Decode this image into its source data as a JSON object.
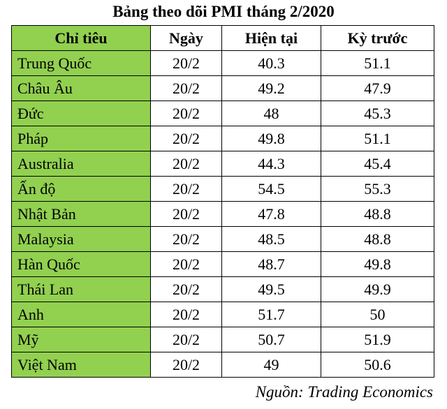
{
  "title": "Bảng theo dõi PMI tháng 2/2020",
  "headers": [
    "Chỉ tiêu",
    "Ngày",
    "Hiện tại",
    "Kỳ trước"
  ],
  "rows": [
    {
      "name": "Trung Quốc",
      "date": "20/2",
      "current": "40.3",
      "previous": "51.1"
    },
    {
      "name": "Châu Âu",
      "date": "20/2",
      "current": "49.2",
      "previous": "47.9"
    },
    {
      "name": "Đức",
      "date": "20/2",
      "current": "48",
      "previous": "45.3"
    },
    {
      "name": "Pháp",
      "date": "20/2",
      "current": "49.8",
      "previous": "51.1"
    },
    {
      "name": "Australia",
      "date": "20/2",
      "current": "44.3",
      "previous": "45.4"
    },
    {
      "name": "Ấn độ",
      "date": "20/2",
      "current": "54.5",
      "previous": "55.3"
    },
    {
      "name": "Nhật Bản",
      "date": "20/2",
      "current": "47.8",
      "previous": "48.8"
    },
    {
      "name": "Malaysia",
      "date": "20/2",
      "current": "48.5",
      "previous": "48.8"
    },
    {
      "name": "Hàn Quốc",
      "date": "20/2",
      "current": "48.7",
      "previous": "49.8"
    },
    {
      "name": "Thái Lan",
      "date": "20/2",
      "current": "49.5",
      "previous": "49.9"
    },
    {
      "name": "Anh",
      "date": "20/2",
      "current": "51.7",
      "previous": "50"
    },
    {
      "name": "Mỹ",
      "date": "20/2",
      "current": "50.7",
      "previous": "51.9"
    },
    {
      "name": "Việt Nam",
      "date": "20/2",
      "current": "49",
      "previous": "50.6"
    }
  ],
  "source": "Nguồn: Trading Economics",
  "colors": {
    "name_column_fill": "#92d050",
    "border": "#000000",
    "background": "#ffffff"
  }
}
